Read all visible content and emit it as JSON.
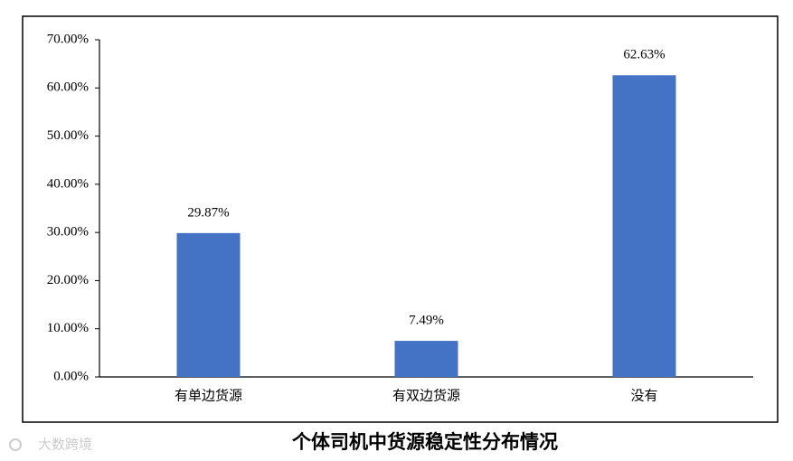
{
  "chart_data": {
    "type": "bar",
    "title": "个体司机中货源稳定性分布情况",
    "watermark": "大数跨境",
    "categories": [
      "有单边货源",
      "有双边货源",
      "没有"
    ],
    "values": [
      29.87,
      7.49,
      62.63
    ],
    "value_labels": [
      "29.87%",
      "7.49%",
      "62.63%"
    ],
    "color": "#4472c4",
    "ylim": [
      0,
      70
    ],
    "yticks": [
      {
        "value": 0,
        "label": "0.00%"
      },
      {
        "value": 10,
        "label": "10.00%"
      },
      {
        "value": 20,
        "label": "20.00%"
      },
      {
        "value": 30,
        "label": "30.00%"
      },
      {
        "value": 40,
        "label": "40.00%"
      },
      {
        "value": 50,
        "label": "50.00%"
      },
      {
        "value": 60,
        "label": "60.00%"
      },
      {
        "value": 70,
        "label": "70.00%"
      }
    ],
    "grid": false
  }
}
